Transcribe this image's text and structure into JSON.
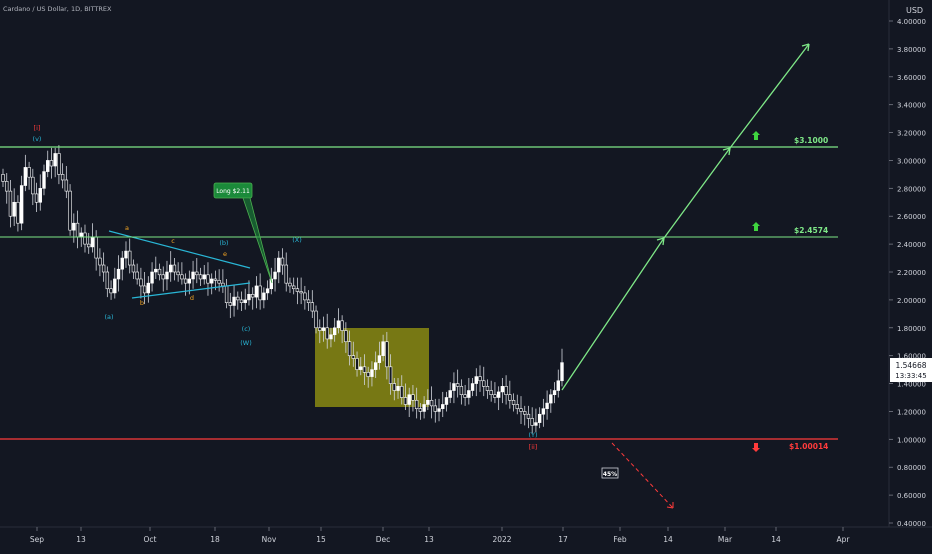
{
  "header": {
    "symbol_line": "Cardano / US Dollar, 1D, BITTREX"
  },
  "chart_data": {
    "type": "candlestick",
    "currency": "USD",
    "y_ticks": [
      "4.00000",
      "3.80000",
      "3.60000",
      "3.40000",
      "3.20000",
      "3.00000",
      "2.80000",
      "2.60000",
      "2.40000",
      "2.20000",
      "2.00000",
      "1.80000",
      "1.60000",
      "1.40000",
      "1.20000",
      "1.00000",
      "0.80000",
      "0.60000",
      "0.40000"
    ],
    "x_ticks": [
      "Sep",
      "13",
      "Oct",
      "18",
      "Nov",
      "15",
      "Dec",
      "13",
      "2022",
      "17",
      "Feb",
      "14",
      "Mar",
      "14",
      "Apr"
    ],
    "ylim": [
      0.4,
      4.0
    ],
    "grid": false,
    "last_price": "1.54668",
    "countdown": "13:33:45",
    "levels": [
      {
        "label": "$3.1000",
        "value": 3.1,
        "color": "#7ee787",
        "arrow": "up"
      },
      {
        "label": "$2.4574",
        "value": 2.4574,
        "color": "#7ee787",
        "arrow": "up"
      },
      {
        "label": "$1.00014",
        "value": 1.00014,
        "color": "#ff3b3b",
        "arrow": "down"
      }
    ],
    "callout": "Long $2.11",
    "probability_box": "45%",
    "wave_labels": {
      "top_red": "[i]",
      "top_blue": "(v)",
      "a_blue": "(a)",
      "b_blue": "(b)",
      "c_blue": "(c)",
      "w_blue": "(W)",
      "x_blue": "(X)",
      "y_blue": "(Y)",
      "ii_red": "[ii]",
      "a_or": "a",
      "b_or": "b",
      "c_or": "c",
      "d_or": "d",
      "e_or": "e"
    },
    "candle_style": {
      "up": "#ffffff",
      "down": "#ffffff"
    },
    "colors": {
      "green": "#7ee787",
      "red": "#ff3b3b",
      "cyan": "#29b6d6",
      "orange": "#f5a623",
      "box": "#9a9a1a"
    }
  }
}
